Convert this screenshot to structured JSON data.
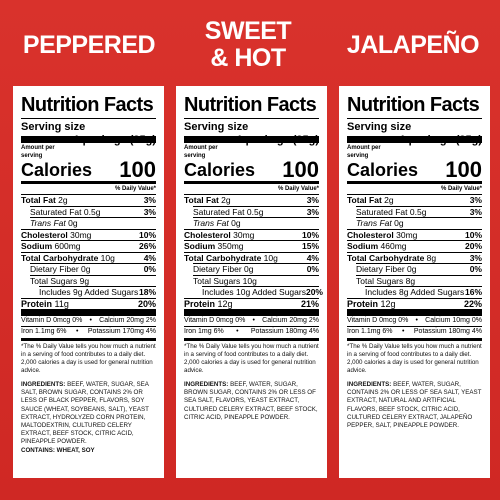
{
  "panels": [
    {
      "flavor": "PEPPERED",
      "title": "Nutrition Facts",
      "serving_label": "Serving size",
      "serving_value": "1 package (35g)",
      "amount_label": "Amount per serving",
      "calories_label": "Calories",
      "calories": "100",
      "dv_label": "% Daily Value*",
      "total_fat": "2g",
      "total_fat_dv": "3%",
      "sat_fat": "0.5g",
      "sat_fat_dv": "3%",
      "trans_fat": "0g",
      "cholesterol": "30mg",
      "cholesterol_dv": "10%",
      "sodium": "600mg",
      "sodium_dv": "26%",
      "carb": "10g",
      "carb_dv": "4%",
      "fiber": "0g",
      "fiber_dv": "0%",
      "sugars": "9g",
      "added_sugars": "Includes 9g Added Sugars",
      "added_sugars_dv": "18%",
      "protein": "11g",
      "protein_dv": "20%",
      "vit_d": "Vitamin D 0mcg 0%",
      "calcium": "Calcium 20mg 2%",
      "iron": "Iron 1.1mg 6%",
      "potassium": "Potassium 170mg 4%",
      "footnote": "*The % Daily Value tells you how much a nutrient in a serving of food contributes to a daily diet. 2,000 calories a day is used for general nutrition advice.",
      "ingredients_label": "INGREDIENTS:",
      "ingredients": "BEEF, WATER, SUGAR, SEA SALT, BROWN SUGAR, CONTAINS 2% OR LESS OF BLACK PEPPER, FLAVORS, SOY SAUCE (WHEAT, SOYBEANS, SALT), YEAST EXTRACT, HYDROLYZED CORN PROTEIN, MALTODEXTRIN, CULTURED CELERY EXTRACT, BEEF STOCK, CITRIC ACID, PINEAPPLE POWDER.",
      "contains": "CONTAINS: WHEAT, SOY"
    },
    {
      "flavor": "SWEET & HOT",
      "title": "Nutrition Facts",
      "serving_label": "Serving size",
      "serving_value": "1 package (35g)",
      "amount_label": "Amount per serving",
      "calories_label": "Calories",
      "calories": "100",
      "dv_label": "% Daily Value*",
      "total_fat": "2g",
      "total_fat_dv": "3%",
      "sat_fat": "0.5g",
      "sat_fat_dv": "3%",
      "trans_fat": "0g",
      "cholesterol": "30mg",
      "cholesterol_dv": "10%",
      "sodium": "350mg",
      "sodium_dv": "15%",
      "carb": "10g",
      "carb_dv": "4%",
      "fiber": "0g",
      "fiber_dv": "0%",
      "sugars": "10g",
      "added_sugars": "Includes 10g Added Sugars",
      "added_sugars_dv": "20%",
      "protein": "12g",
      "protein_dv": "21%",
      "vit_d": "Vitamin D 0mcg 0%",
      "calcium": "Calcium 20mg 2%",
      "iron": "Iron 1mg 6%",
      "potassium": "Potassium 180mg 4%",
      "footnote": "*The % Daily Value tells you how much a nutrient in a serving of food contributes to a daily diet. 2,000 calories a day is used for general nutrition advice.",
      "ingredients_label": "INGREDIENTS:",
      "ingredients": "BEEF, WATER, SUGAR, BROWN SUGAR, CONTAINS 2% OR LESS OF SEA SALT, FLAVORS, YEAST EXTRACT, CULTURED CELERY EXTRACT, BEEF STOCK, CITRIC ACID, PINEAPPLE POWDER.",
      "contains": ""
    },
    {
      "flavor": "JALAPEÑO",
      "title": "Nutrition Facts",
      "serving_label": "Serving size",
      "serving_value": "1 package (35g)",
      "amount_label": "Amount per serving",
      "calories_label": "Calories",
      "calories": "100",
      "dv_label": "% Daily Value*",
      "total_fat": "2g",
      "total_fat_dv": "3%",
      "sat_fat": "0.5g",
      "sat_fat_dv": "3%",
      "trans_fat": "0g",
      "cholesterol": "30mg",
      "cholesterol_dv": "10%",
      "sodium": "460mg",
      "sodium_dv": "20%",
      "carb": "8g",
      "carb_dv": "3%",
      "fiber": "0g",
      "fiber_dv": "0%",
      "sugars": "8g",
      "added_sugars": "Includes 8g Added Sugars",
      "added_sugars_dv": "16%",
      "protein": "12g",
      "protein_dv": "22%",
      "vit_d": "Vitamin D 0mcg 0%",
      "calcium": "Calcium 10mg 0%",
      "iron": "Iron 1.1mg 6%",
      "potassium": "Potassium 180mg 4%",
      "footnote": "*The % Daily Value tells you how much a nutrient in a serving of food contributes to a daily diet. 2,000 calories a day is used for general nutrition advice.",
      "ingredients_label": "INGREDIENTS:",
      "ingredients": "BEEF, WATER, SUGAR, CONTAINS 2% OR LESS OF SEA SALT, YEAST EXTRACT, NATURAL AND ARTIFICIAL FLAVORS, BEEF STOCK, CITRIC ACID, CULTURED CELERY EXTRACT, JALAPEÑO PEPPER, SALT, PINEAPPLE POWDER.",
      "contains": ""
    }
  ],
  "labels": {
    "total_fat": "Total Fat",
    "sat_fat": "Saturated Fat",
    "trans_fat": "Trans Fat",
    "cholesterol": "Cholesterol",
    "sodium": "Sodium",
    "carb": "Total Carbohydrate",
    "fiber": "Dietary Fiber",
    "sugars": "Total Sugars",
    "protein": "Protein"
  },
  "colors": {
    "background": "#d32b27",
    "panel": "#ffffff",
    "text": "#000000"
  }
}
